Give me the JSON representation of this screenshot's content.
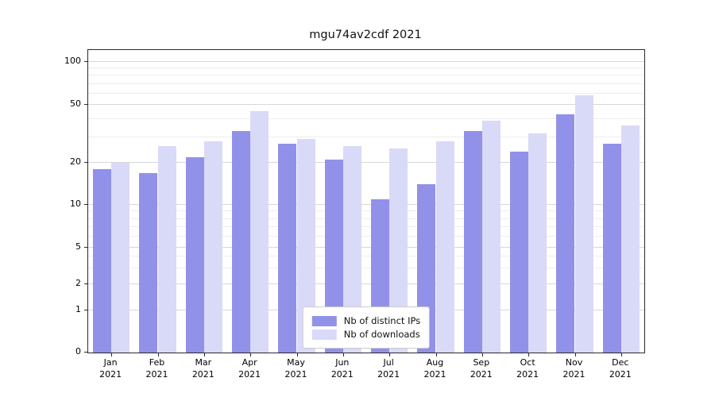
{
  "chart_data": {
    "type": "bar",
    "title": "mgu74av2cdf 2021",
    "categories": [
      "Jan",
      "Feb",
      "Mar",
      "Apr",
      "May",
      "Jun",
      "Jul",
      "Aug",
      "Sep",
      "Oct",
      "Nov",
      "Dec"
    ],
    "year": "2021",
    "series": [
      {
        "name": "Nb of distinct IPs",
        "color": "#9191e9",
        "values": [
          18,
          17,
          22,
          33,
          27,
          21,
          11,
          14,
          33,
          24,
          43,
          27
        ]
      },
      {
        "name": "Nb of downloads",
        "color": "#d9d9f8",
        "values": [
          20,
          26,
          28,
          45,
          29,
          26,
          25,
          28,
          39,
          32,
          58,
          36
        ]
      }
    ],
    "yscale": "symlog",
    "yticks": [
      0,
      1,
      2,
      5,
      10,
      20,
      50,
      100
    ],
    "yminorticks": [
      3,
      4,
      6,
      7,
      8,
      9,
      30,
      40,
      60,
      70,
      80,
      90
    ],
    "ylim": [
      0,
      120
    ],
    "xlabel": "",
    "ylabel": "",
    "grid": true,
    "legend_position": "lower center"
  }
}
